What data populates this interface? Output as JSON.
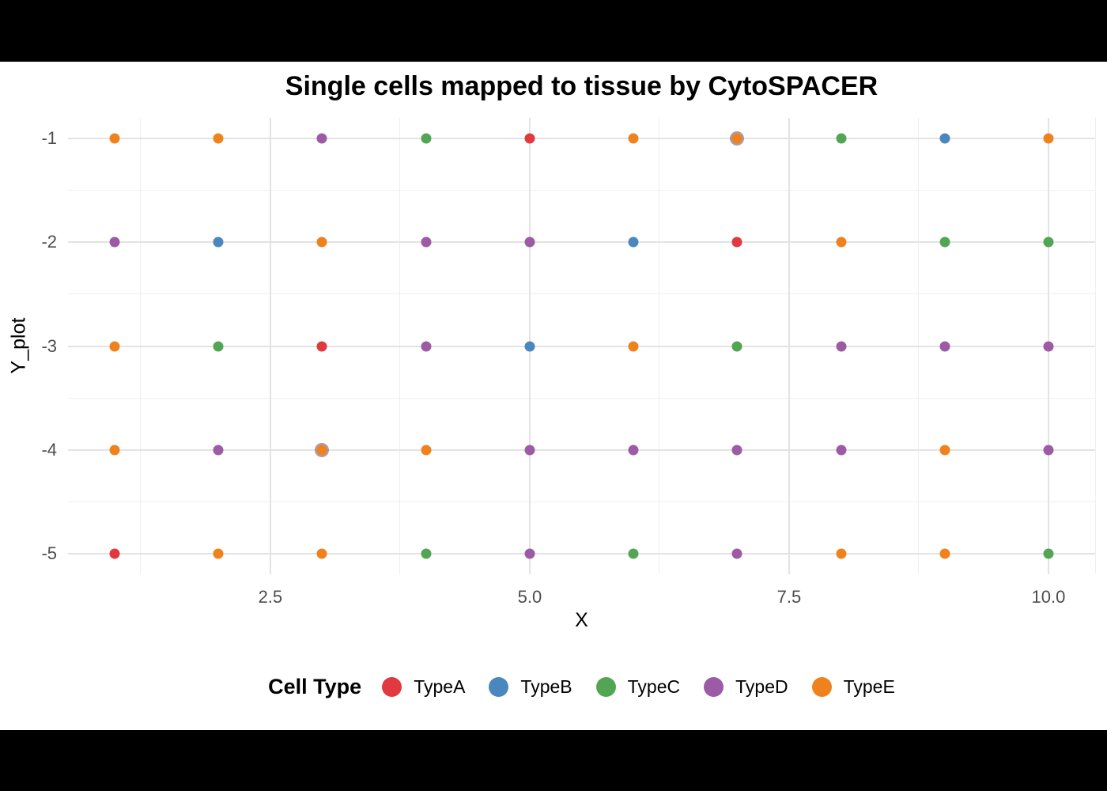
{
  "window": {
    "top_bar_color": "#000000",
    "bottom_bar_color": "#000000",
    "background_color": "#ffffff"
  },
  "chart_data": {
    "type": "scatter",
    "title": "Single cells mapped to tissue by CytoSPACER",
    "xlabel": "X",
    "ylabel": "Y_plot",
    "legend_title": "Cell Type",
    "legend_position": "bottom",
    "grid": "on",
    "xlim": [
      0.55,
      10.45
    ],
    "ylim": [
      -5.2,
      -0.8
    ],
    "x_ticks": [
      2.5,
      5.0,
      7.5,
      10.0
    ],
    "x_tick_labels": [
      "2.5",
      "5.0",
      "7.5",
      "10.0"
    ],
    "y_ticks": [
      -1,
      -2,
      -3,
      -4,
      -5
    ],
    "y_tick_labels": [
      "-1",
      "-2",
      "-3",
      "-4",
      "-5"
    ],
    "x_minor": [
      1.25,
      3.75,
      6.25,
      8.75,
      10.45
    ],
    "y_minor": [
      -1.5,
      -2.5,
      -3.5,
      -4.5
    ],
    "grid_major_color": "#e3e3e3",
    "grid_minor_color": "#efefef",
    "tick_label_color": "#4d4d4d",
    "legend_order": [
      "TypeA",
      "TypeB",
      "TypeC",
      "TypeD",
      "TypeE"
    ],
    "palette": {
      "TypeA": "#E03A40",
      "TypeB": "#4A87BE",
      "TypeC": "#52A653",
      "TypeD": "#9C5BA4",
      "TypeE": "#F0821E"
    },
    "points": [
      [
        1,
        -1,
        "TypeE"
      ],
      [
        2,
        -1,
        "TypeE"
      ],
      [
        3,
        -1,
        "TypeD"
      ],
      [
        4,
        -1,
        "TypeC"
      ],
      [
        5,
        -1,
        "TypeA"
      ],
      [
        6,
        -1,
        "TypeE"
      ],
      [
        7,
        -1,
        "TypeE",
        "overlap"
      ],
      [
        8,
        -1,
        "TypeC"
      ],
      [
        9,
        -1,
        "TypeB"
      ],
      [
        10,
        -1,
        "TypeE"
      ],
      [
        1,
        -2,
        "TypeD"
      ],
      [
        2,
        -2,
        "TypeB"
      ],
      [
        3,
        -2,
        "TypeE"
      ],
      [
        4,
        -2,
        "TypeD"
      ],
      [
        5,
        -2,
        "TypeD"
      ],
      [
        6,
        -2,
        "TypeB"
      ],
      [
        7,
        -2,
        "TypeA"
      ],
      [
        8,
        -2,
        "TypeE"
      ],
      [
        9,
        -2,
        "TypeC"
      ],
      [
        10,
        -2,
        "TypeC"
      ],
      [
        1,
        -3,
        "TypeE"
      ],
      [
        2,
        -3,
        "TypeC"
      ],
      [
        3,
        -3,
        "TypeA"
      ],
      [
        4,
        -3,
        "TypeD"
      ],
      [
        5,
        -3,
        "TypeB"
      ],
      [
        6,
        -3,
        "TypeE"
      ],
      [
        7,
        -3,
        "TypeC"
      ],
      [
        8,
        -3,
        "TypeD"
      ],
      [
        9,
        -3,
        "TypeD"
      ],
      [
        10,
        -3,
        "TypeD"
      ],
      [
        1,
        -4,
        "TypeE"
      ],
      [
        2,
        -4,
        "TypeD"
      ],
      [
        3,
        -4,
        "TypeE",
        "overlap"
      ],
      [
        4,
        -4,
        "TypeE"
      ],
      [
        5,
        -4,
        "TypeD"
      ],
      [
        6,
        -4,
        "TypeD"
      ],
      [
        7,
        -4,
        "TypeD"
      ],
      [
        8,
        -4,
        "TypeD"
      ],
      [
        9,
        -4,
        "TypeE"
      ],
      [
        10,
        -4,
        "TypeD"
      ],
      [
        1,
        -5,
        "TypeA"
      ],
      [
        2,
        -5,
        "TypeE"
      ],
      [
        3,
        -5,
        "TypeE"
      ],
      [
        4,
        -5,
        "TypeC"
      ],
      [
        5,
        -5,
        "TypeD"
      ],
      [
        6,
        -5,
        "TypeC"
      ],
      [
        7,
        -5,
        "TypeD"
      ],
      [
        8,
        -5,
        "TypeE"
      ],
      [
        9,
        -5,
        "TypeE"
      ],
      [
        10,
        -5,
        "TypeC"
      ]
    ]
  }
}
